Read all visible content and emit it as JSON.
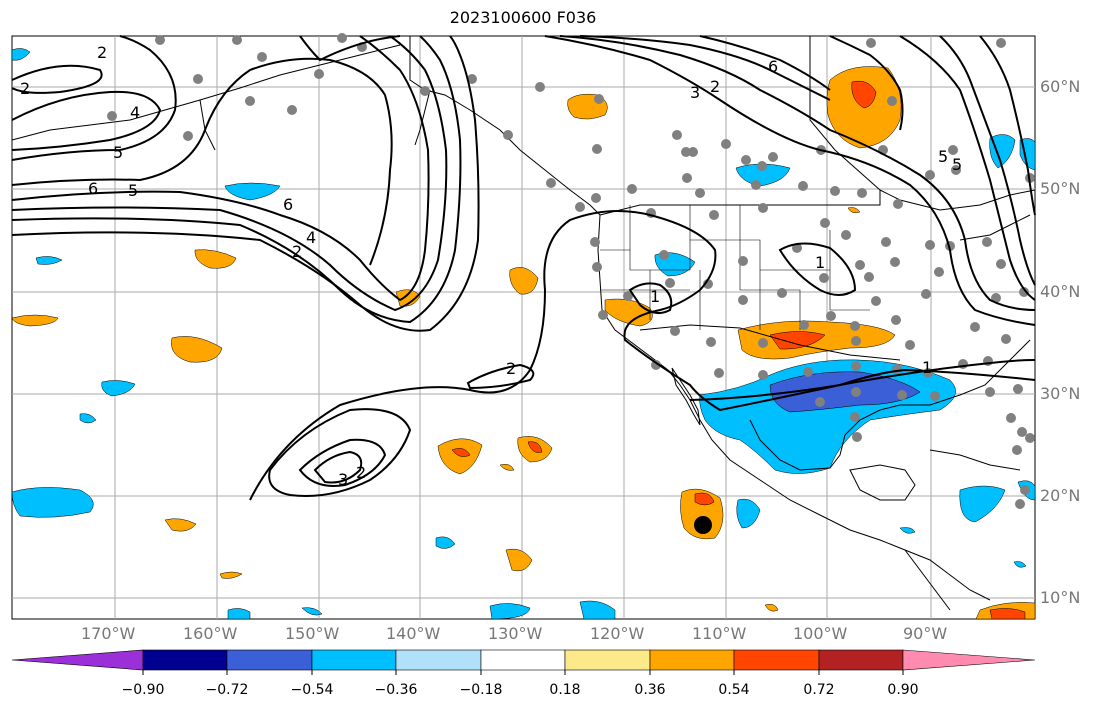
{
  "title": "2023100600 F036",
  "lat_labels": [
    "60°N",
    "50°N",
    "40°N",
    "30°N",
    "20°N",
    "10°N"
  ],
  "lon_labels": [
    "170°W",
    "160°W",
    "150°W",
    "140°W",
    "130°W",
    "120°W",
    "110°W",
    "100°W",
    "90°W"
  ],
  "contour_labels": [
    "2",
    "4",
    "5",
    "6",
    "5",
    "2",
    "6",
    "4",
    "2",
    "3",
    "2",
    "6",
    "5",
    "1",
    "1",
    "2",
    "3",
    "2",
    "1",
    "5"
  ],
  "colorbar": {
    "ticks": [
      "−0.90",
      "−0.72",
      "−0.54",
      "−0.36",
      "−0.18",
      "0.18",
      "0.36",
      "0.54",
      "0.72",
      "0.90"
    ],
    "colors": [
      "#9b30d8",
      "#000090",
      "#3a5fd6",
      "#00bfff",
      "#b0e0fa",
      "#ffffff",
      "#fbe98a",
      "#ffa500",
      "#ff4500",
      "#b22222",
      "#ff8cb0"
    ]
  },
  "colors": {
    "negative_light": "#00bfff",
    "negative_medium": "#3a5fd6",
    "positive_light": "#ffa500",
    "positive_medium": "#ff4500",
    "station": "#808080",
    "gridline": "#aaaaaa"
  }
}
